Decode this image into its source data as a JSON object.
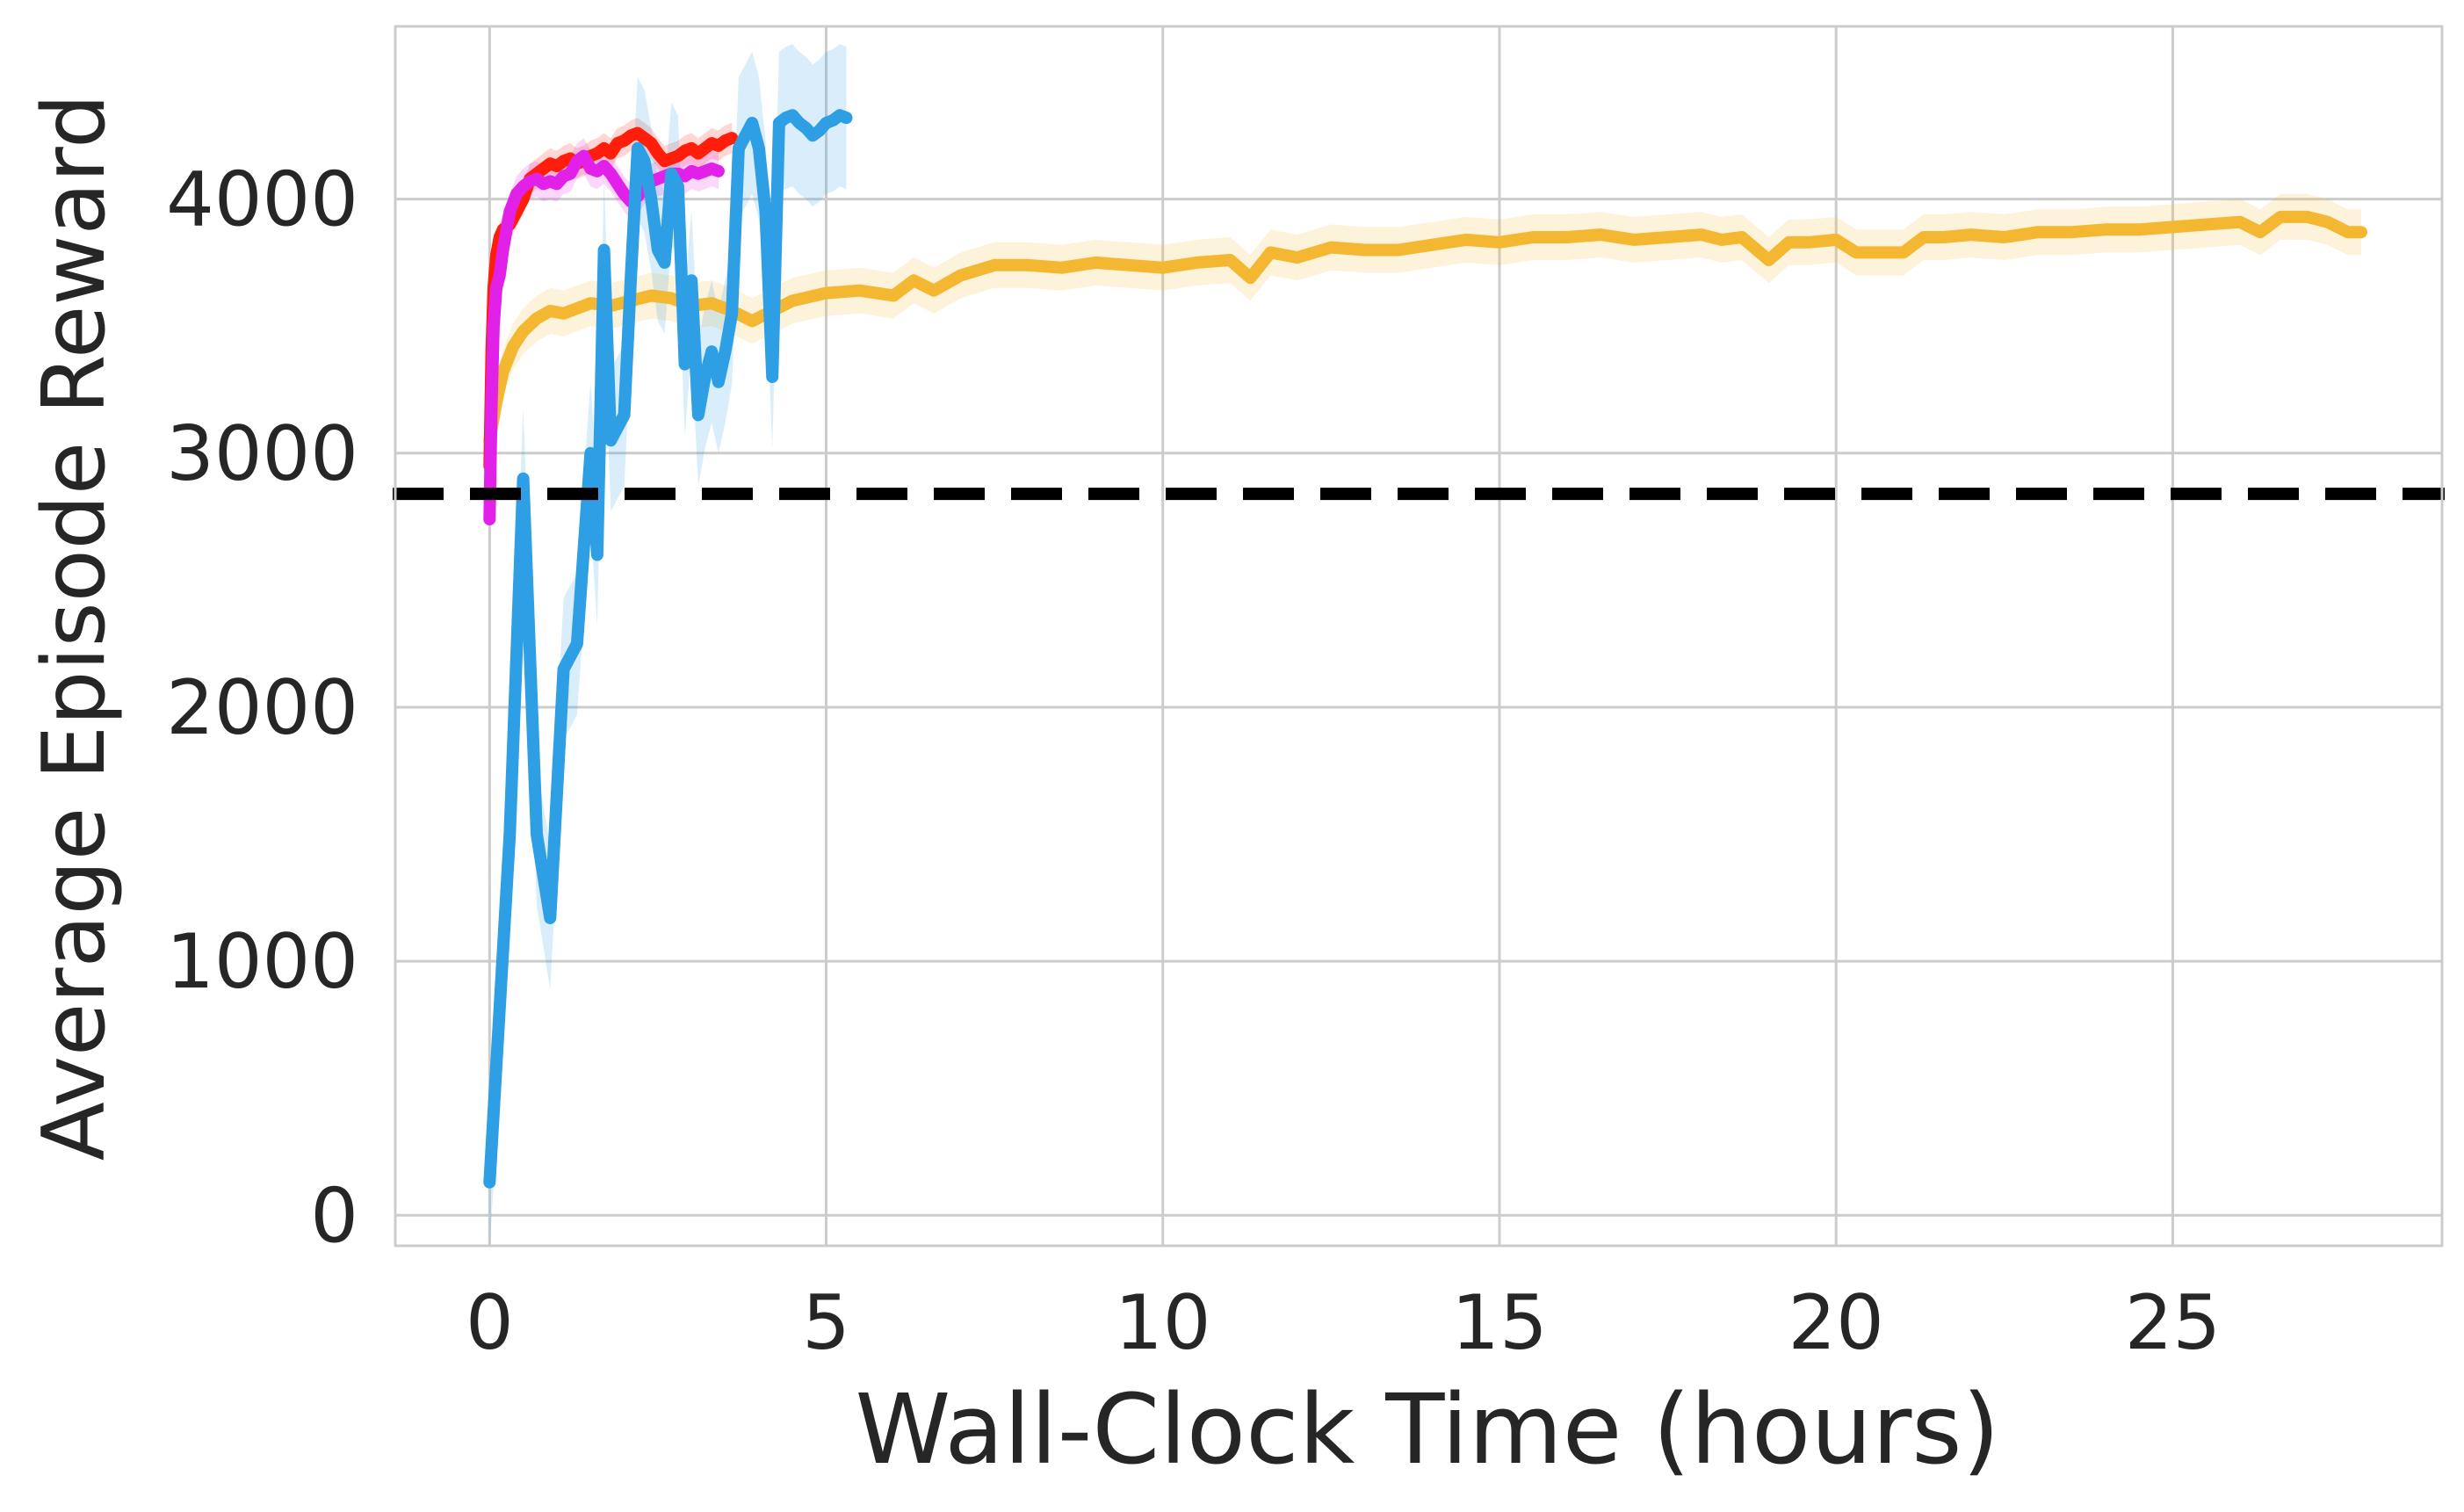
{
  "chart_data": {
    "type": "line",
    "xlabel": "Wall-Clock Time (hours)",
    "ylabel": "Average Episode Reward",
    "xlim": [
      -1.4,
      29
    ],
    "ylim": [
      -120,
      4680
    ],
    "xticks": [
      0,
      5,
      10,
      15,
      20,
      25
    ],
    "yticks": [
      0,
      1000,
      2000,
      3000,
      4000
    ],
    "xtick_labels": [
      "0",
      "5",
      "10",
      "15",
      "20",
      "25"
    ],
    "ytick_labels": [
      "0",
      "1000",
      "2000",
      "3000",
      "4000"
    ],
    "grid": true,
    "legend": "none",
    "reference_line": {
      "y": 2840,
      "style": "dashed",
      "color": "#000000"
    },
    "series": [
      {
        "color": "#F4B731",
        "band_width": 90,
        "x": [
          0,
          0.1,
          0.2,
          0.35,
          0.5,
          0.7,
          0.9,
          1.1,
          1.3,
          1.5,
          1.8,
          2.1,
          2.4,
          2.7,
          3.0,
          3.3,
          3.6,
          3.9,
          4.2,
          4.5,
          5.0,
          5.5,
          6.0,
          6.3,
          6.6,
          7.0,
          7.5,
          8.0,
          8.5,
          9.0,
          9.5,
          10.0,
          10.5,
          11.0,
          11.3,
          11.6,
          12.0,
          12.5,
          13.0,
          13.5,
          14.0,
          14.5,
          15.0,
          15.5,
          16.0,
          16.5,
          17.0,
          17.5,
          18.0,
          18.3,
          18.6,
          19.0,
          19.3,
          19.6,
          20.0,
          20.3,
          21.0,
          21.3,
          21.6,
          22.0,
          22.5,
          23.0,
          23.5,
          24.0,
          24.5,
          25.0,
          25.5,
          26.0,
          26.3,
          26.6,
          27.0,
          27.3,
          27.6,
          27.8
        ],
        "values": [
          3050,
          3200,
          3320,
          3420,
          3480,
          3530,
          3560,
          3550,
          3570,
          3590,
          3580,
          3600,
          3620,
          3610,
          3580,
          3590,
          3560,
          3520,
          3560,
          3600,
          3630,
          3640,
          3620,
          3680,
          3640,
          3700,
          3740,
          3740,
          3730,
          3750,
          3740,
          3730,
          3750,
          3760,
          3690,
          3790,
          3770,
          3810,
          3800,
          3800,
          3820,
          3840,
          3830,
          3850,
          3850,
          3860,
          3840,
          3850,
          3860,
          3840,
          3850,
          3760,
          3830,
          3830,
          3840,
          3790,
          3790,
          3850,
          3850,
          3860,
          3850,
          3870,
          3870,
          3880,
          3880,
          3890,
          3900,
          3910,
          3870,
          3930,
          3930,
          3910,
          3870,
          3870
        ]
      },
      {
        "color": "#FF1E0B",
        "band_width": 60,
        "x": [
          0,
          0.03,
          0.06,
          0.1,
          0.15,
          0.2,
          0.3,
          0.4,
          0.5,
          0.6,
          0.7,
          0.8,
          0.9,
          1.0,
          1.1,
          1.2,
          1.3,
          1.4,
          1.5,
          1.6,
          1.7,
          1.8,
          1.9,
          2.0,
          2.1,
          2.2,
          2.3,
          2.4,
          2.5,
          2.6,
          2.7,
          2.8,
          2.9,
          3.0,
          3.1,
          3.2,
          3.3,
          3.4,
          3.5,
          3.6
        ],
        "values": [
          2950,
          3400,
          3650,
          3780,
          3850,
          3880,
          3900,
          3950,
          4000,
          4080,
          4100,
          4120,
          4140,
          4130,
          4150,
          4160,
          4140,
          4150,
          4170,
          4180,
          4200,
          4180,
          4220,
          4230,
          4250,
          4260,
          4240,
          4220,
          4180,
          4150,
          4160,
          4170,
          4190,
          4200,
          4180,
          4200,
          4220,
          4210,
          4230,
          4240
        ]
      },
      {
        "color": "#E120E8",
        "band_width": 70,
        "x": [
          0,
          0.03,
          0.06,
          0.1,
          0.15,
          0.2,
          0.3,
          0.4,
          0.5,
          0.6,
          0.7,
          0.8,
          0.9,
          1.0,
          1.1,
          1.2,
          1.3,
          1.4,
          1.5,
          1.6,
          1.7,
          1.8,
          1.9,
          2.0,
          2.1,
          2.2,
          2.3,
          2.4,
          2.5,
          2.6,
          2.7,
          2.8,
          2.9,
          3.0,
          3.1,
          3.2,
          3.3,
          3.4
        ],
        "values": [
          2740,
          3200,
          3500,
          3650,
          3700,
          3800,
          3950,
          4020,
          4050,
          4070,
          4080,
          4060,
          4070,
          4060,
          4090,
          4100,
          4150,
          4170,
          4120,
          4110,
          4130,
          4100,
          4060,
          4020,
          3990,
          4010,
          4050,
          4070,
          4080,
          4090,
          4100,
          4100,
          4090,
          4110,
          4100,
          4110,
          4120,
          4110
        ]
      },
      {
        "color": "#2F9FE5",
        "band_width": 280,
        "x": [
          0,
          0.3,
          0.5,
          0.7,
          0.9,
          1.1,
          1.3,
          1.5,
          1.6,
          1.7,
          1.8,
          1.9,
          2.0,
          2.1,
          2.2,
          2.3,
          2.4,
          2.5,
          2.6,
          2.7,
          2.8,
          2.9,
          3.0,
          3.1,
          3.2,
          3.3,
          3.4,
          3.5,
          3.6,
          3.7,
          3.8,
          3.9,
          4.0,
          4.1,
          4.2,
          4.3,
          4.4,
          4.5,
          4.6,
          4.7,
          4.8,
          4.9,
          5.0,
          5.1,
          5.2,
          5.3
        ],
        "values": [
          130,
          1500,
          2900,
          1500,
          1170,
          2150,
          2250,
          3000,
          2600,
          3800,
          3050,
          3100,
          3150,
          3700,
          4200,
          4150,
          4000,
          3800,
          3750,
          4100,
          4050,
          3350,
          3680,
          3150,
          3300,
          3400,
          3280,
          3400,
          3550,
          4200,
          4250,
          4300,
          4200,
          3950,
          3300,
          4300,
          4320,
          4330,
          4300,
          4280,
          4250,
          4270,
          4300,
          4310,
          4330,
          4320
        ]
      }
    ]
  }
}
